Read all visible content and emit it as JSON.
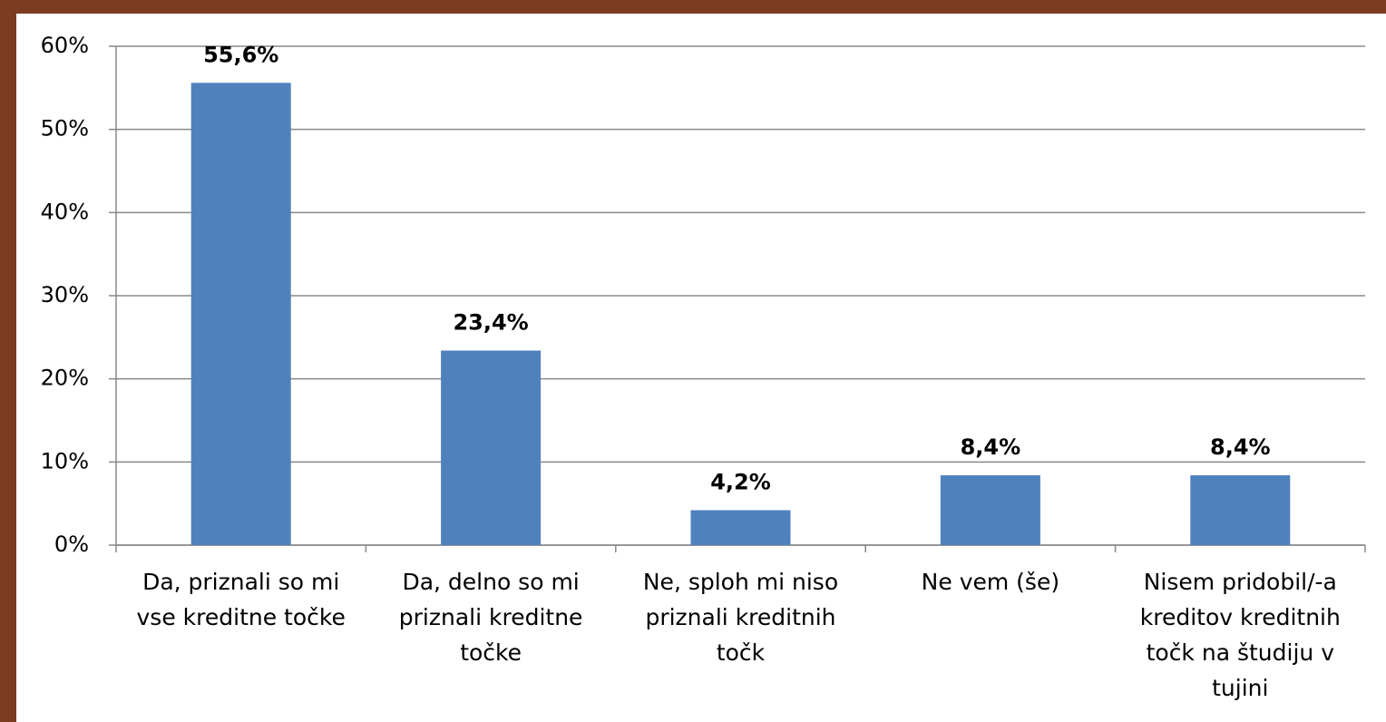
{
  "chart_data": {
    "type": "bar",
    "categories": [
      "Da, priznali so mi vse kreditne točke",
      "Da, delno so mi priznali kreditne točke",
      "Ne, sploh mi niso priznali kreditnih točk",
      "Ne vem (še)",
      "Nisem pridobil/-a kreditov kreditnih točk na študiju v tujini"
    ],
    "values": [
      55.6,
      23.4,
      4.2,
      8.4,
      8.4
    ],
    "value_labels": [
      "55,6%",
      "23,4%",
      "4,2%",
      "8,4%",
      "8,4%"
    ],
    "color": "#4f81bd",
    "ylim": [
      0,
      60
    ],
    "yticks": [
      {
        "value": 0,
        "label": "0%"
      },
      {
        "value": 10,
        "label": "10%"
      },
      {
        "value": 20,
        "label": "20%"
      },
      {
        "value": 30,
        "label": "30%"
      },
      {
        "value": 40,
        "label": "40%"
      },
      {
        "value": 50,
        "label": "50%"
      },
      {
        "value": 60,
        "label": "60%"
      }
    ],
    "grid": true
  }
}
